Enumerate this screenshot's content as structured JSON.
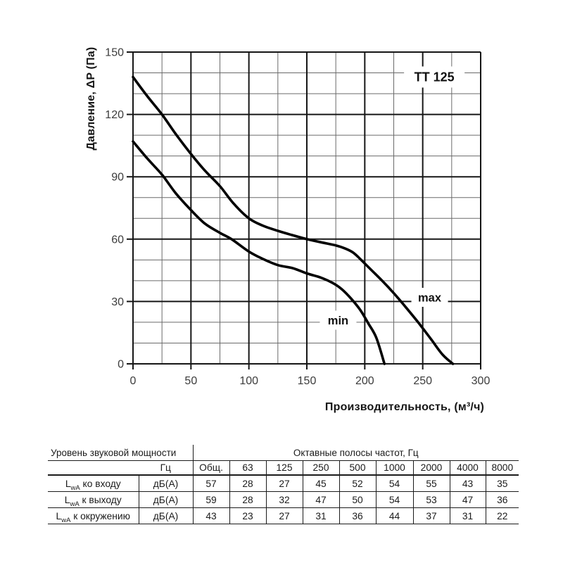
{
  "chart": {
    "model_label": "TT 125",
    "y_axis_title": "Давление, ΔP (Па)",
    "x_axis_title": "Производительность, (м³/ч)"
  },
  "chart_data": {
    "type": "line",
    "title": "TT 125",
    "xlabel": "Производительность, (м³/ч)",
    "ylabel": "Давление, ΔP (Па)",
    "xlim": [
      0,
      300
    ],
    "ylim": [
      0,
      150
    ],
    "x_ticks": [
      0,
      50,
      100,
      150,
      200,
      250,
      300
    ],
    "y_ticks": [
      0,
      30,
      60,
      90,
      120,
      150
    ],
    "x_minor_step": 25,
    "y_minor_step": 10,
    "grid": true,
    "legend_position": "none",
    "series": [
      {
        "name": "max",
        "points": [
          [
            0,
            138
          ],
          [
            12,
            129
          ],
          [
            25,
            120
          ],
          [
            37,
            110.5
          ],
          [
            50,
            101
          ],
          [
            62,
            93
          ],
          [
            75,
            85.5
          ],
          [
            87,
            77
          ],
          [
            100,
            70
          ],
          [
            112,
            66.5
          ],
          [
            125,
            64
          ],
          [
            137,
            62
          ],
          [
            150,
            60
          ],
          [
            162,
            58.5
          ],
          [
            175,
            57
          ],
          [
            183,
            55.5
          ],
          [
            190,
            53.5
          ],
          [
            196,
            50.5
          ],
          [
            205,
            45.5
          ],
          [
            215,
            40
          ],
          [
            225,
            34
          ],
          [
            235,
            27.5
          ],
          [
            246,
            20
          ],
          [
            257,
            12
          ],
          [
            267,
            4.5
          ],
          [
            276,
            0
          ]
        ]
      },
      {
        "name": "min",
        "points": [
          [
            0,
            107
          ],
          [
            12,
            99
          ],
          [
            25,
            91
          ],
          [
            37,
            82
          ],
          [
            50,
            74
          ],
          [
            62,
            67.5
          ],
          [
            75,
            63
          ],
          [
            85,
            60
          ],
          [
            100,
            54
          ],
          [
            112,
            50.5
          ],
          [
            125,
            47.5
          ],
          [
            138,
            46
          ],
          [
            150,
            43.5
          ],
          [
            162,
            41.5
          ],
          [
            172,
            39
          ],
          [
            180,
            36
          ],
          [
            188,
            31.5
          ],
          [
            196,
            26
          ],
          [
            203,
            19.5
          ],
          [
            210,
            12.5
          ],
          [
            217,
            0
          ]
        ]
      }
    ],
    "annotations": [
      {
        "text": "TT 125",
        "x": 260,
        "y": 138,
        "style": "model"
      },
      {
        "text": "max",
        "x": 256,
        "y": 32,
        "style": "curve"
      },
      {
        "text": "min",
        "x": 177,
        "y": 21,
        "style": "curve"
      }
    ]
  },
  "table": {
    "header_left": "Уровень звуковой мощности",
    "header_right": "Октавные полосы частот, Гц",
    "unit_col_header": "Гц",
    "freq_headers": [
      "Общ.",
      "63",
      "125",
      "250",
      "500",
      "1000",
      "2000",
      "4000",
      "8000"
    ],
    "rows": [
      {
        "label_prefix": "L",
        "label_sub": "wA",
        "label_text": " ко входу",
        "unit": "дБ(А)",
        "values": [
          "57",
          "28",
          "27",
          "45",
          "52",
          "54",
          "55",
          "43",
          "35"
        ]
      },
      {
        "label_prefix": "L",
        "label_sub": "wA",
        "label_text": " к выходу",
        "unit": "дБ(А)",
        "values": [
          "59",
          "28",
          "32",
          "47",
          "50",
          "54",
          "53",
          "47",
          "36"
        ]
      },
      {
        "label_prefix": "L",
        "label_sub": "wA",
        "label_text": " к окружению",
        "unit": "дБ(А)",
        "values": [
          "43",
          "23",
          "27",
          "31",
          "36",
          "44",
          "37",
          "31",
          "22"
        ]
      }
    ]
  }
}
